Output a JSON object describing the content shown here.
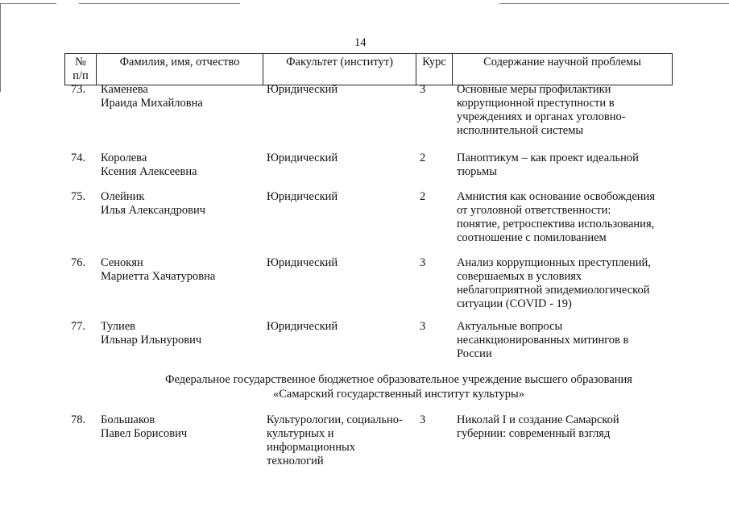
{
  "page_number": "14",
  "table_header": {
    "num": [
      "№",
      "п/п"
    ],
    "name": "Фамилия, имя, отчество",
    "faculty": "Факультет (институт)",
    "course": "Курс",
    "problem": "Содержание научной проблемы"
  },
  "rows": [
    {
      "num": "73.",
      "name": [
        "Каменева",
        "Ираида Михайловна"
      ],
      "faculty": [
        "Юридический"
      ],
      "course": "3",
      "problem": [
        "Основные меры профилактики",
        "коррупционной преступности в",
        "учреждениях и органах уголовно-",
        "исполнительной системы"
      ]
    },
    {
      "num": "74.",
      "name": [
        "Королева",
        "Ксения Алексеевна"
      ],
      "faculty": [
        "Юридический"
      ],
      "course": "2",
      "problem": [
        "Паноптикум – как проект идеальной",
        "тюрьмы"
      ]
    },
    {
      "num": "75.",
      "name": [
        "Олейник",
        "Илья Александрович"
      ],
      "faculty": [
        "Юридический"
      ],
      "course": "2",
      "problem": [
        "Амнистия как основание освобождения",
        "от уголовной ответственности:",
        "понятие, ретроспектива использования,",
        "соотношение с помилованием"
      ]
    },
    {
      "num": "76.",
      "name": [
        "Сенокян",
        "Мариетта Хачатуровна"
      ],
      "faculty": [
        "Юридический"
      ],
      "course": "3",
      "problem": [
        "Анализ коррупционных преступлений,",
        "совершаемых в условиях",
        "неблагоприятной эпидемиологической",
        "ситуации (COVID - 19)"
      ]
    },
    {
      "num": "77.",
      "name": [
        "Тулиев",
        "Ильнар Ильнурович"
      ],
      "faculty": [
        "Юридический"
      ],
      "course": "3",
      "problem": [
        "Актуальные вопросы",
        "несанкционированных митингов в",
        "России"
      ]
    }
  ],
  "section": [
    "Федеральное государственное бюджетное образовательное учреждение высшего образования",
    "«Самарский государственный институт культуры»"
  ],
  "rows2": [
    {
      "num": "78.",
      "name": [
        "Большаков",
        "Павел Борисович"
      ],
      "faculty": [
        "Культурологии, социально-",
        "культурных и",
        "информационных",
        "технологий"
      ],
      "course": "3",
      "problem": [
        "Николай I и создание Самарской",
        "губернии: современный взгляд"
      ]
    }
  ]
}
